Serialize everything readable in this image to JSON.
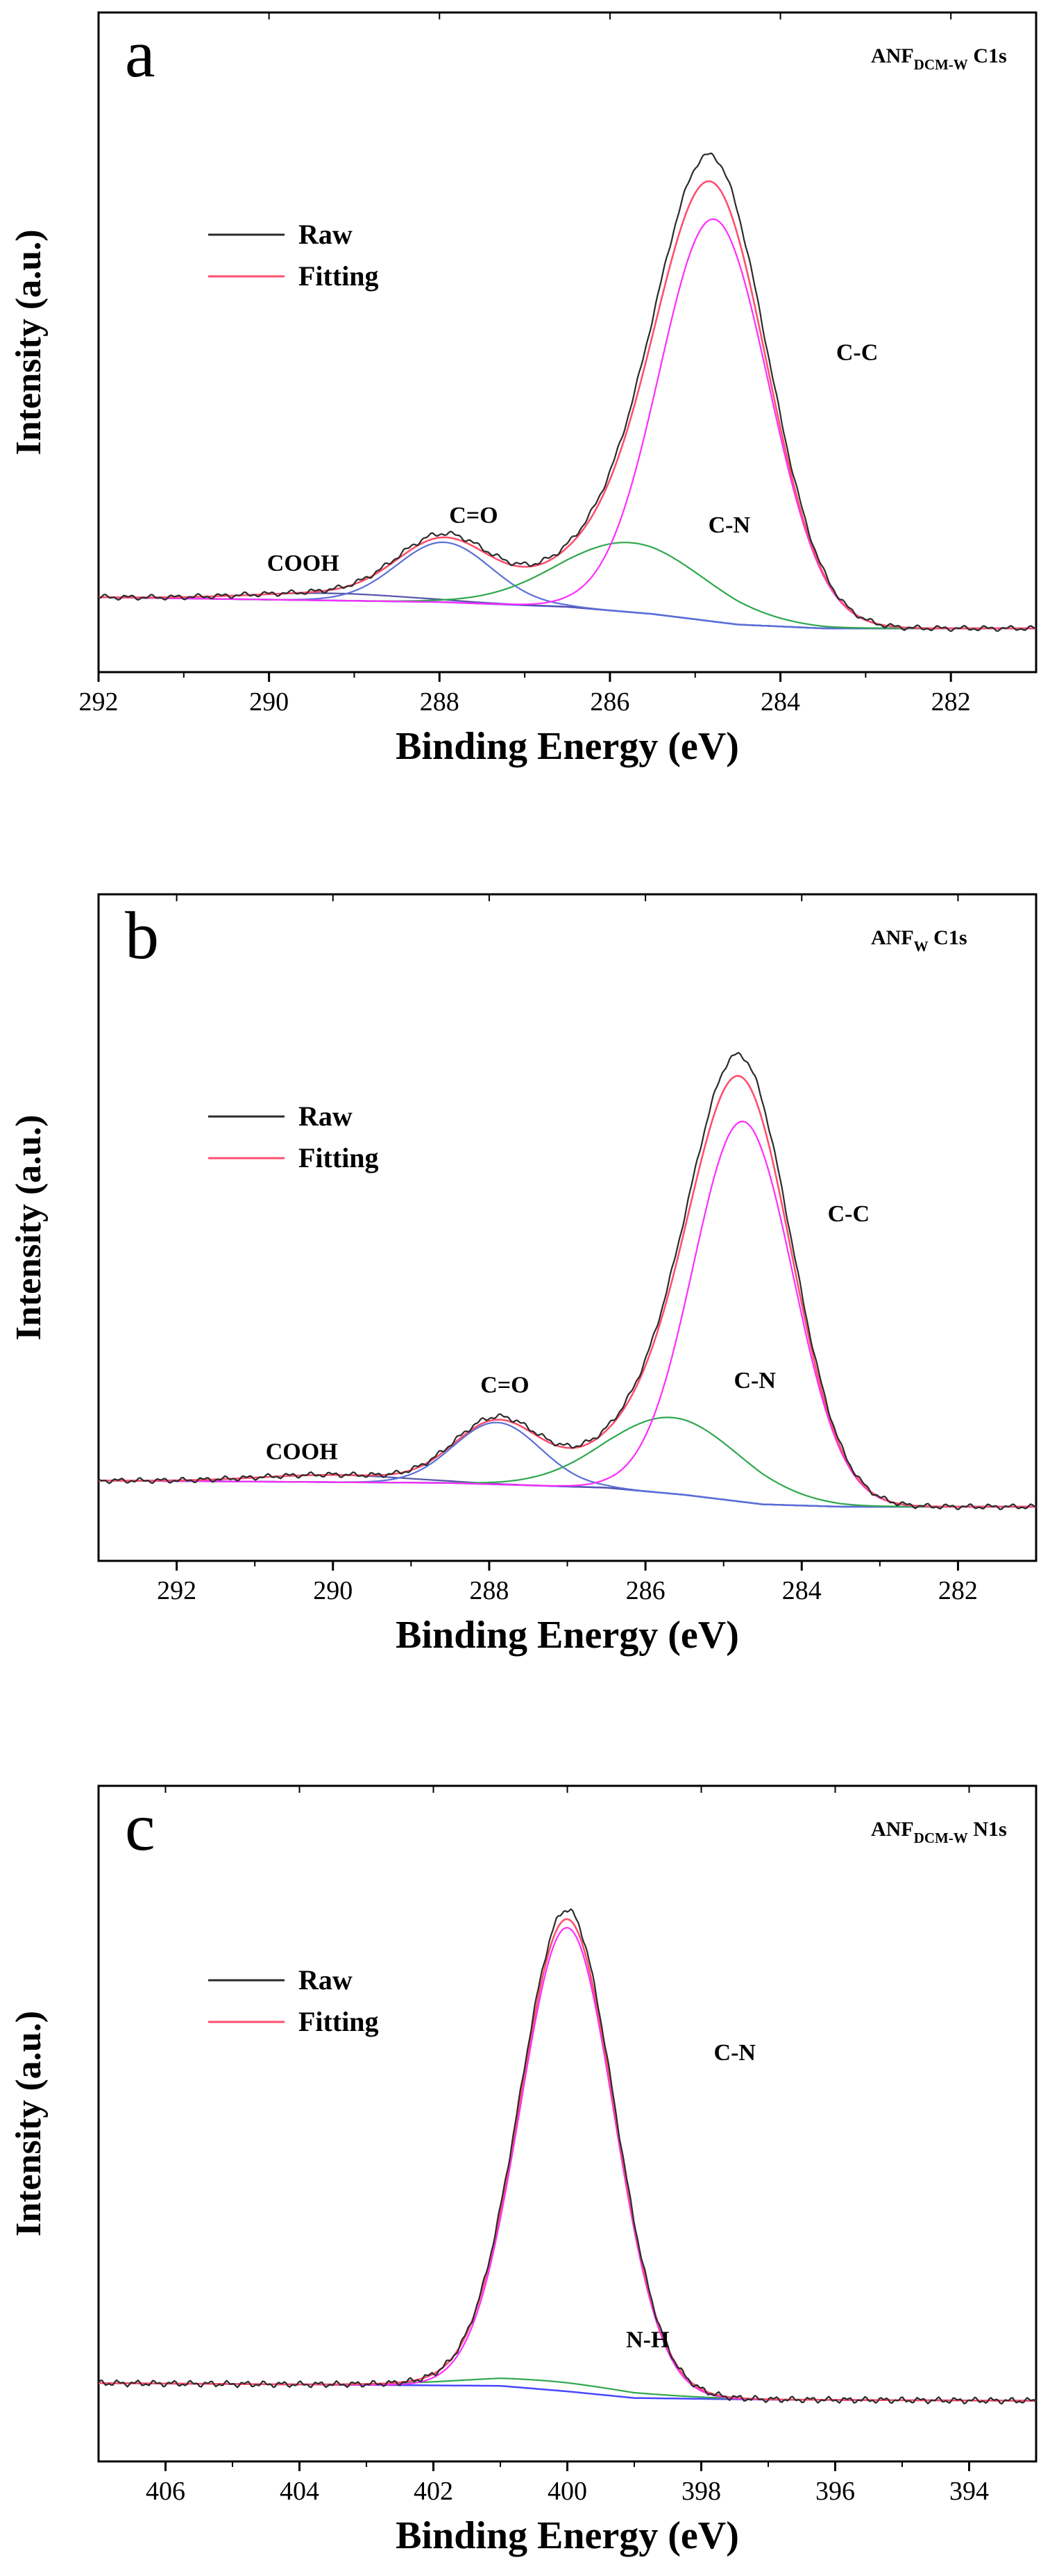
{
  "chart_data": [
    {
      "type": "line",
      "panel_label": "a",
      "title": {
        "main": "ANF",
        "sub": "DCM-W",
        "suffix": " C1s"
      },
      "xlabel": "Binding Energy (eV)",
      "ylabel": "Intensity (a.u.)",
      "xlim": [
        292,
        281
      ],
      "ylim": [
        0,
        100
      ],
      "xticks": [
        292,
        290,
        288,
        286,
        284,
        282
      ],
      "legend": {
        "position": "upper-left",
        "entries": [
          {
            "label": "Raw",
            "color": "#2b2b2b"
          },
          {
            "label": "Fitting",
            "color": "#ff4f6e"
          }
        ]
      },
      "baseline": {
        "name": "Background",
        "color": "#4848ff",
        "points": [
          [
            292,
            6.5
          ],
          [
            288,
            5.5
          ],
          [
            286.5,
            4.5
          ],
          [
            285.5,
            3
          ],
          [
            284.5,
            0.8
          ],
          [
            283.5,
            0
          ],
          [
            281,
            0
          ]
        ]
      },
      "peaks": [
        {
          "name": "COOH",
          "center": 289.3,
          "height": 1.5,
          "fwhm": 2.2,
          "color": "#5555aa"
        },
        {
          "name": "C=O",
          "center": 287.95,
          "height": 12.5,
          "fwhm": 1.3,
          "color": "#5a6fd8"
        },
        {
          "name": "C-N",
          "center": 285.75,
          "height": 14.5,
          "fwhm": 2.0,
          "color": "#2ea84c"
        },
        {
          "name": "C-C",
          "center": 284.78,
          "height": 84,
          "fwhm": 1.5,
          "color": "#ff2cff"
        }
      ],
      "raw_scale": 1.06,
      "annotations": [
        {
          "text": "COOH",
          "x": 289.6,
          "y": 12
        },
        {
          "text": "C=O",
          "x": 287.6,
          "y": 22
        },
        {
          "text": "C-N",
          "x": 284.6,
          "y": 20
        },
        {
          "text": "C-C",
          "x": 283.1,
          "y": 56
        }
      ]
    },
    {
      "type": "line",
      "panel_label": "b",
      "title": {
        "main": "ANF",
        "sub": "W",
        "suffix": " C1s"
      },
      "xlabel": "Binding Energy (eV)",
      "ylabel": "Intensity (a.u.)",
      "xlim": [
        293,
        281
      ],
      "ylim": [
        0,
        100
      ],
      "xticks": [
        292,
        290,
        288,
        286,
        284,
        282
      ],
      "legend": {
        "position": "upper-left",
        "entries": [
          {
            "label": "Raw",
            "color": "#2b2b2b"
          },
          {
            "label": "Fitting",
            "color": "#ff4f6e"
          }
        ]
      },
      "baseline": {
        "name": "Background",
        "color": "#4848ff",
        "points": [
          [
            293,
            5.5
          ],
          [
            288.5,
            5
          ],
          [
            286.5,
            4
          ],
          [
            285.5,
            2.5
          ],
          [
            284.5,
            0.5
          ],
          [
            283.5,
            0
          ],
          [
            281,
            0
          ]
        ]
      },
      "peaks": [
        {
          "name": "COOH",
          "center": 290.0,
          "height": 1.5,
          "fwhm": 2.2,
          "color": "#5555aa"
        },
        {
          "name": "C=O",
          "center": 287.9,
          "height": 13,
          "fwhm": 1.3,
          "color": "#5a6fd8"
        },
        {
          "name": "C-N",
          "center": 285.65,
          "height": 16,
          "fwhm": 2.0,
          "color": "#2ea84c"
        },
        {
          "name": "C-C",
          "center": 284.75,
          "height": 80,
          "fwhm": 1.5,
          "color": "#ff2cff"
        }
      ],
      "raw_scale": 1.05,
      "annotations": [
        {
          "text": "COOH",
          "x": 290.4,
          "y": 10
        },
        {
          "text": "C=O",
          "x": 287.8,
          "y": 24
        },
        {
          "text": "C-N",
          "x": 284.6,
          "y": 25
        },
        {
          "text": "C-C",
          "x": 283.4,
          "y": 60
        }
      ]
    },
    {
      "type": "line",
      "panel_label": "c",
      "title": {
        "main": "ANF",
        "sub": "DCM-W",
        "suffix": " N1s"
      },
      "xlabel": "Binding Energy (eV)",
      "ylabel": "Intensity (a.u.)",
      "xlim": [
        407,
        393
      ],
      "ylim": [
        0,
        100
      ],
      "xticks": [
        406,
        404,
        402,
        400,
        398,
        396,
        394
      ],
      "legend": {
        "position": "upper-left",
        "entries": [
          {
            "label": "Raw",
            "color": "#2b2b2b"
          },
          {
            "label": "Fitting",
            "color": "#ff4f6e"
          }
        ]
      },
      "baseline": {
        "name": "Background",
        "color": "#4848ff",
        "points": [
          [
            407,
            3.5
          ],
          [
            401,
            3
          ],
          [
            400,
            2
          ],
          [
            399,
            0.8
          ],
          [
            397,
            0.5
          ],
          [
            393,
            0.3
          ]
        ]
      },
      "peaks": [
        {
          "name": "N-H",
          "center": 400.3,
          "height": 1.6,
          "fwhm": 3.0,
          "color": "#2ea84c"
        },
        {
          "name": "C-N",
          "center": 400.0,
          "height": 84,
          "fwhm": 1.65,
          "color": "#ff2cff"
        }
      ],
      "raw_scale": 1.02,
      "annotations": [
        {
          "text": "C-N",
          "x": 397.5,
          "y": 62
        },
        {
          "text": "N-H",
          "x": 398.8,
          "y": 10
        }
      ]
    }
  ]
}
